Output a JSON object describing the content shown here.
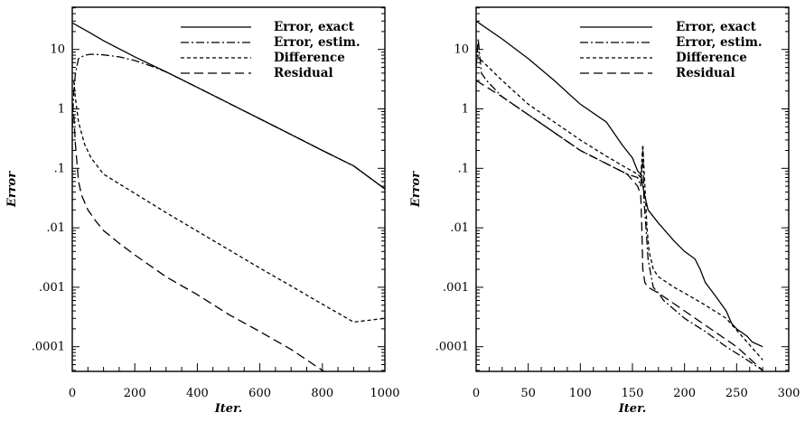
{
  "chart_data": [
    {
      "type": "line",
      "xlabel": "Iter.",
      "ylabel": "Error",
      "xlim": [
        0,
        1000
      ],
      "ylim": [
        5e-05,
        40
      ],
      "yscale": "log",
      "x_ticks": [
        0,
        200,
        400,
        600,
        800,
        1000
      ],
      "y_ticks": [
        10,
        1,
        0.1,
        0.01,
        0.001,
        0.0001
      ],
      "y_tick_labels": [
        "10",
        "1",
        ".1",
        ".01",
        ".001",
        ".0001"
      ],
      "legend_position": "top-right",
      "series": [
        {
          "name": "Error, exact",
          "style": "solid",
          "x": [
            0,
            50,
            100,
            200,
            300,
            400,
            500,
            600,
            700,
            800,
            900,
            1000
          ],
          "y": [
            28,
            20,
            14,
            7.5,
            4.2,
            2.3,
            1.25,
            0.68,
            0.37,
            0.2,
            0.11,
            0.045
          ]
        },
        {
          "name": "Error, estim.",
          "style": "dashdot",
          "x": [
            0,
            5,
            10,
            20,
            40,
            60,
            100,
            150,
            200,
            250,
            300,
            400,
            500,
            600,
            700,
            800,
            900,
            1000
          ],
          "y": [
            0.5,
            2,
            4,
            7,
            8,
            8.3,
            8.1,
            7.5,
            6.5,
            5.3,
            4.2,
            2.3,
            1.25,
            0.68,
            0.37,
            0.2,
            0.11,
            0.045
          ]
        },
        {
          "name": "Difference",
          "style": "dashed",
          "x": [
            5,
            10,
            20,
            40,
            60,
            100,
            150,
            200,
            300,
            400,
            500,
            600,
            700,
            800,
            900,
            1000
          ],
          "y": [
            3,
            1.5,
            0.6,
            0.25,
            0.15,
            0.08,
            0.055,
            0.038,
            0.018,
            0.0088,
            0.0043,
            0.0021,
            0.00105,
            0.00052,
            0.00026,
            0.0003
          ]
        },
        {
          "name": "Residual",
          "style": "longdash",
          "x": [
            5,
            10,
            20,
            30,
            50,
            75,
            100,
            150,
            200,
            300,
            400,
            500,
            600,
            700,
            800,
            900,
            1000
          ],
          "y": [
            0.8,
            0.25,
            0.06,
            0.035,
            0.02,
            0.013,
            0.009,
            0.0055,
            0.0035,
            0.0015,
            0.00075,
            0.00035,
            0.00018,
            9e-05,
            4e-05,
            2e-05,
            4e-05
          ]
        }
      ]
    },
    {
      "type": "line",
      "xlabel": "Iter.",
      "ylabel": "Error",
      "xlim": [
        0,
        300
      ],
      "ylim": [
        5e-05,
        40
      ],
      "yscale": "log",
      "x_ticks": [
        0,
        50,
        100,
        150,
        200,
        250,
        300
      ],
      "y_ticks": [
        10,
        1,
        0.1,
        0.01,
        0.001,
        0.0001
      ],
      "y_tick_labels": [
        "10",
        "1",
        ".1",
        ".01",
        ".001",
        ".0001"
      ],
      "legend_position": "top-right",
      "series": [
        {
          "name": "Error, exact",
          "style": "solid",
          "x": [
            0,
            25,
            50,
            75,
            100,
            125,
            140,
            150,
            155,
            158,
            161,
            165,
            175,
            190,
            200,
            210,
            215,
            220,
            230,
            240,
            245,
            250,
            260,
            265,
            275
          ],
          "y": [
            30,
            15,
            7,
            3,
            1.2,
            0.6,
            0.25,
            0.15,
            0.09,
            0.08,
            0.04,
            0.02,
            0.012,
            0.006,
            0.004,
            0.003,
            0.002,
            0.0012,
            0.0007,
            0.0004,
            0.00025,
            0.0002,
            0.00015,
            0.00012,
            0.0001
          ]
        },
        {
          "name": "Error, estim.",
          "style": "dashdot",
          "x": [
            0,
            2,
            5,
            10,
            25,
            50,
            75,
            100,
            125,
            145,
            155,
            158,
            160,
            161,
            163,
            165,
            168,
            170,
            175,
            180,
            200,
            220,
            240,
            260,
            275
          ],
          "y": [
            5,
            15,
            4,
            3,
            1.6,
            0.8,
            0.4,
            0.2,
            0.12,
            0.08,
            0.07,
            0.05,
            0.2,
            0.03,
            0.01,
            0.003,
            0.0015,
            0.001,
            0.0008,
            0.0006,
            0.0003,
            0.00018,
            0.0001,
            6e-05,
            4e-05
          ]
        },
        {
          "name": "Difference",
          "style": "dashed",
          "x": [
            0,
            25,
            50,
            75,
            100,
            125,
            145,
            155,
            158,
            160,
            162,
            164,
            166,
            170,
            175,
            190,
            200,
            220,
            240,
            260,
            275
          ],
          "y": [
            8,
            3,
            1.2,
            0.6,
            0.3,
            0.16,
            0.1,
            0.08,
            0.07,
            0.25,
            0.05,
            0.01,
            0.004,
            0.002,
            0.0015,
            0.001,
            0.0008,
            0.0005,
            0.0003,
            0.00012,
            6e-05
          ]
        },
        {
          "name": "Residual",
          "style": "longdash",
          "x": [
            0,
            25,
            50,
            75,
            100,
            125,
            145,
            155,
            158,
            159,
            160,
            162,
            165,
            175,
            200,
            225,
            250,
            275
          ],
          "y": [
            3,
            1.6,
            0.8,
            0.4,
            0.2,
            0.12,
            0.08,
            0.05,
            0.035,
            0.01,
            0.002,
            0.0012,
            0.001,
            0.0008,
            0.0004,
            0.0002,
            0.0001,
            4e-05
          ]
        }
      ]
    }
  ]
}
